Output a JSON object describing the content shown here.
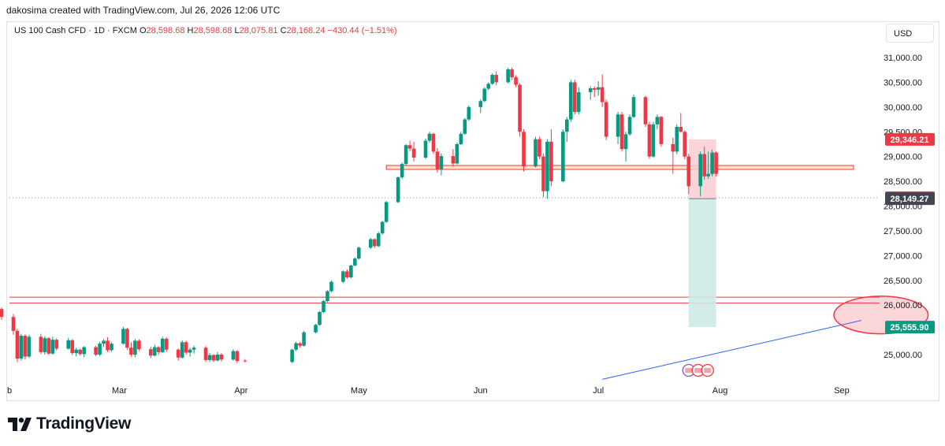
{
  "header": {
    "attribution": "dakosima created with TradingView.com, Jul 26, 2026 12:06 UTC"
  },
  "symbol_bar": {
    "symbol": "US 100 Cash CFD · 1D · FXCM",
    "open_label": "O",
    "open": "28,598.68",
    "high_label": "H",
    "high": "28,598.68",
    "low_label": "L",
    "low": "28,075.81",
    "close_label": "C",
    "close": "28,168.24",
    "change": "−430.44 (−1.51%)"
  },
  "currency": "USD",
  "brand": {
    "name": "TradingView",
    "logo_icon": "tradingview-logo-icon"
  },
  "colors": {
    "up": "#089981",
    "down": "#f23645",
    "zone": "#f7e9c8",
    "stop": "#f9cdd1",
    "target": "#cdeae4",
    "trendline": "#2962ff"
  },
  "chart_data": {
    "type": "candlestick",
    "y_ticks": [
      "31,000.00",
      "30,500.00",
      "30,000.00",
      "29,500.00",
      "29,000.00",
      "28,500.00",
      "28,000.00",
      "27,500.00",
      "27,000.00",
      "26,500.00",
      "26,000.00",
      "25,000.00"
    ],
    "y_tick_values": [
      31000,
      30500,
      30000,
      29500,
      29000,
      28500,
      28000,
      27500,
      27000,
      26500,
      26000,
      25000
    ],
    "x_ticks": [
      "Feb",
      "Mar",
      "Apr",
      "May",
      "Jun",
      "Jul",
      "Aug",
      "Sep"
    ],
    "x_tick_labels": [
      "b",
      "Mar",
      "Apr",
      "May",
      "Jun",
      "Jul",
      "Aug",
      "Sep"
    ],
    "x_tick_dates": [
      "2026-02-01",
      "2026-03-01",
      "2026-04-01",
      "2026-05-01",
      "2026-06-01",
      "2026-07-01",
      "2026-08-01",
      "2026-09-01"
    ],
    "price_labels": [
      {
        "text": "29,346.21",
        "value": 29346.21,
        "color": "#f23645"
      },
      {
        "text": "28,168.24",
        "value": 28168.24,
        "color": "#f23645"
      },
      {
        "text": "28,149.27",
        "value": 28149.27,
        "color": "#434651"
      },
      {
        "text": "25,555.90",
        "value": 25555.9,
        "color": "#089981"
      }
    ],
    "last_price": 28168.24,
    "resistance_zone": {
      "top": 28820,
      "bottom": 28740,
      "from": "2026-05-08",
      "to": "2026-09-01"
    },
    "support_lines": [
      26160,
      26040
    ],
    "position": {
      "from": "2026-07-24",
      "to": "2026-07-31",
      "entry": 28149.27,
      "stop": 29346.21,
      "target": 25555.9
    },
    "trendline": {
      "from": {
        "date": "2026-07-02",
        "value": 24500
      },
      "to": {
        "date": "2026-09-06",
        "value": 25690
      }
    },
    "ellipse": {
      "center_date": "2026-09-11",
      "center_value": 25800,
      "date_radius_days": 12,
      "value_radius": 380
    },
    "events_date": "2026-07-24",
    "candles_a": [
      [
        "2026-01-30",
        25920,
        25950,
        25700,
        25760
      ],
      [
        "2026-02-02",
        25760,
        25820,
        25400,
        25480
      ],
      [
        "2026-02-03",
        25480,
        25520,
        24850,
        24920
      ],
      [
        "2026-02-04",
        24920,
        25420,
        24880,
        25380
      ],
      [
        "2026-02-05",
        25380,
        25410,
        24900,
        24960
      ],
      [
        "2026-02-06",
        24960,
        25400,
        24930,
        25360
      ],
      [
        "2026-02-09",
        25360,
        25420,
        25010,
        25050
      ],
      [
        "2026-02-10",
        25050,
        25370,
        25000,
        25330
      ],
      [
        "2026-02-11",
        25330,
        25350,
        24990,
        25020
      ],
      [
        "2026-02-12",
        25020,
        25360,
        25000,
        25300
      ],
      [
        "2026-02-13",
        25300,
        25330,
        25080,
        25120
      ],
      [
        "2026-02-16",
        25120,
        25340,
        25100,
        25290
      ],
      [
        "2026-02-17",
        25290,
        25310,
        24990,
        25030
      ],
      [
        "2026-02-18",
        25030,
        25140,
        24960,
        25100
      ],
      [
        "2026-02-19",
        25100,
        25120,
        24980,
        25010
      ],
      [
        "2026-02-20",
        25010,
        25170,
        24950,
        25150
      ],
      [
        "2026-02-23",
        25150,
        25180,
        24970,
        25000
      ],
      [
        "2026-02-24",
        25000,
        25260,
        24970,
        25220
      ],
      [
        "2026-02-25",
        25220,
        25310,
        25150,
        25280
      ],
      [
        "2026-02-26",
        25280,
        25350,
        25050,
        25090
      ],
      [
        "2026-02-27",
        25090,
        25250,
        25060,
        25220
      ],
      [
        "2026-03-02",
        25220,
        25560,
        25200,
        25520
      ],
      [
        "2026-03-03",
        25520,
        25540,
        25100,
        25140
      ],
      [
        "2026-03-04",
        25140,
        25250,
        24960,
        25000
      ],
      [
        "2026-03-05",
        25000,
        25320,
        24950,
        25280
      ],
      [
        "2026-03-06",
        25280,
        25310,
        25070,
        25110
      ],
      [
        "2026-03-09",
        25110,
        25160,
        24930,
        24980
      ],
      [
        "2026-03-10",
        24980,
        25200,
        24960,
        25150
      ],
      [
        "2026-03-11",
        25150,
        25170,
        25000,
        25050
      ],
      [
        "2026-03-12",
        25050,
        25360,
        25030,
        25320
      ],
      [
        "2026-03-13",
        25320,
        25350,
        25050,
        25100
      ],
      [
        "2026-03-16",
        25100,
        25120,
        24880,
        24940
      ],
      [
        "2026-03-17",
        24940,
        25290,
        24920,
        25250
      ],
      [
        "2026-03-18",
        25250,
        25280,
        25000,
        25040
      ],
      [
        "2026-03-19",
        25040,
        25140,
        24960,
        25100
      ],
      [
        "2026-03-20",
        25100,
        25180,
        25020,
        25140
      ],
      [
        "2026-03-23",
        25140,
        25170,
        24850,
        24890
      ],
      [
        "2026-03-24",
        24890,
        25030,
        24850,
        24990
      ],
      [
        "2026-03-25",
        24990,
        25010,
        24850,
        24880
      ],
      [
        "2026-03-26",
        24880,
        25050,
        24860,
        25000
      ],
      [
        "2026-03-27",
        25000,
        25030,
        24860,
        24900
      ],
      [
        "2026-03-30",
        24900,
        25110,
        24880,
        25070
      ],
      [
        "2026-03-31",
        25070,
        25090,
        24830,
        24870
      ],
      [
        "2026-04-02",
        24880,
        24910,
        24840,
        24870
      ]
    ],
    "candles_b": [
      [
        "2026-04-14",
        24850,
        25120,
        24830,
        25100
      ],
      [
        "2026-04-15",
        25100,
        25260,
        25070,
        25230
      ],
      [
        "2026-04-16",
        25230,
        25250,
        25140,
        25180
      ],
      [
        "2026-04-17",
        25180,
        25480,
        25160,
        25450
      ],
      [
        "2026-04-20",
        25450,
        25620,
        25430,
        25600
      ],
      [
        "2026-04-21",
        25600,
        25880,
        25580,
        25860
      ],
      [
        "2026-04-22",
        25860,
        26100,
        25840,
        26080
      ],
      [
        "2026-04-23",
        26080,
        26300,
        26060,
        26280
      ],
      [
        "2026-04-24",
        26280,
        26500,
        26260,
        26470
      ],
      [
        "2026-04-27",
        26470,
        26700,
        26450,
        26680
      ],
      [
        "2026-04-28",
        26680,
        26720,
        26530,
        26560
      ],
      [
        "2026-04-29",
        26560,
        26820,
        26540,
        26800
      ],
      [
        "2026-04-30",
        26800,
        26960,
        26780,
        26940
      ],
      [
        "2026-05-01",
        26940,
        27180,
        26920,
        27160
      ],
      [
        "2026-05-04",
        27160,
        27360,
        27130,
        27330
      ],
      [
        "2026-05-05",
        27330,
        27350,
        27150,
        27190
      ],
      [
        "2026-05-06",
        27190,
        27480,
        27170,
        27450
      ],
      [
        "2026-05-07",
        27450,
        27700,
        27420,
        27680
      ],
      [
        "2026-05-08",
        27680,
        28100,
        27660,
        28080
      ],
      [
        "2026-05-11",
        28080,
        28600,
        28060,
        28580
      ],
      [
        "2026-05-12",
        28580,
        28880,
        28550,
        28850
      ],
      [
        "2026-05-13",
        28850,
        29250,
        28830,
        29230
      ],
      [
        "2026-05-14",
        29230,
        29320,
        29110,
        29160
      ],
      [
        "2026-05-15",
        29160,
        29300,
        28900,
        28980
      ],
      [
        "2026-05-18",
        28980,
        29360,
        28950,
        29320
      ],
      [
        "2026-05-19",
        29320,
        29500,
        29280,
        29460
      ],
      [
        "2026-05-20",
        29460,
        29480,
        29050,
        29100
      ],
      [
        "2026-05-21",
        29100,
        29170,
        28680,
        28750
      ],
      [
        "2026-05-22",
        28750,
        29060,
        28620,
        29010
      ],
      [
        "2026-05-25",
        29010,
        29150,
        28800,
        28860
      ],
      [
        "2026-05-26",
        28860,
        29280,
        28840,
        29250
      ],
      [
        "2026-05-27",
        29250,
        29500,
        29230,
        29460
      ],
      [
        "2026-05-28",
        29460,
        29780,
        29440,
        29750
      ],
      [
        "2026-05-29",
        29750,
        30030,
        29720,
        30000
      ],
      [
        "2026-06-01",
        30000,
        30150,
        29880,
        30120
      ],
      [
        "2026-06-02",
        30120,
        30400,
        30100,
        30370
      ],
      [
        "2026-06-03",
        30370,
        30500,
        30340,
        30470
      ],
      [
        "2026-06-04",
        30470,
        30680,
        30450,
        30650
      ],
      [
        "2026-06-05",
        30650,
        30720,
        30440,
        30500
      ],
      [
        "2026-06-08",
        30500,
        30790,
        30480,
        30760
      ],
      [
        "2026-06-09",
        30760,
        30800,
        30550,
        30600
      ],
      [
        "2026-06-10",
        30600,
        30640,
        30400,
        30450
      ],
      [
        "2026-06-11",
        30450,
        30480,
        29400,
        29500
      ],
      [
        "2026-06-12",
        29500,
        29550,
        28700,
        28800
      ],
      [
        "2026-06-15",
        28800,
        29400,
        28780,
        29350
      ],
      [
        "2026-06-16",
        29350,
        29400,
        28950,
        29000
      ],
      [
        "2026-06-17",
        29000,
        29050,
        28180,
        28300
      ],
      [
        "2026-06-18",
        28300,
        29350,
        28150,
        29300
      ],
      [
        "2026-06-19",
        29300,
        29550,
        28400,
        28500
      ],
      [
        "2026-06-22",
        28500,
        29550,
        28480,
        29500
      ],
      [
        "2026-06-23",
        29500,
        29800,
        29300,
        29750
      ],
      [
        "2026-06-24",
        29750,
        30550,
        29700,
        30500
      ],
      [
        "2026-06-25",
        30500,
        30550,
        29850,
        29900
      ],
      [
        "2026-06-26",
        29900,
        30400,
        29850,
        30300
      ],
      [
        "2026-06-29",
        30300,
        30420,
        30150,
        30380
      ],
      [
        "2026-06-30",
        30380,
        30420,
        30200,
        30350
      ],
      [
        "2026-07-01",
        30350,
        30520,
        30230,
        30400
      ],
      [
        "2026-07-02",
        30400,
        30660,
        30000,
        30100
      ],
      [
        "2026-07-03",
        30100,
        30150,
        29330,
        29400
      ],
      [
        "2026-07-06",
        29400,
        29900,
        29250,
        29850
      ],
      [
        "2026-07-07",
        29850,
        29900,
        29100,
        29150
      ],
      [
        "2026-07-08",
        29150,
        29500,
        28900,
        29450
      ],
      [
        "2026-07-09",
        29450,
        29850,
        29420,
        29800
      ],
      [
        "2026-07-10",
        29800,
        30250,
        29780,
        30200
      ],
      [
        "2026-07-13",
        30200,
        30230,
        29600,
        29650
      ],
      [
        "2026-07-14",
        29650,
        29700,
        28960,
        29000
      ],
      [
        "2026-07-15",
        29000,
        29700,
        28980,
        29650
      ],
      [
        "2026-07-16",
        29650,
        29850,
        29550,
        29800
      ],
      [
        "2026-07-17",
        29800,
        29820,
        29200,
        29250
      ],
      [
        "2026-07-20",
        29250,
        29380,
        28650,
        29100
      ],
      [
        "2026-07-21",
        29100,
        29650,
        29050,
        29600
      ],
      [
        "2026-07-22",
        29600,
        29880,
        29480,
        29500
      ],
      [
        "2026-07-23",
        29500,
        29530,
        28950,
        29000
      ],
      [
        "2026-07-24",
        29000,
        29050,
        28240,
        28400
      ],
      [
        "2026-07-27",
        28400,
        29100,
        28200,
        29050
      ],
      [
        "2026-07-28",
        29050,
        29200,
        28530,
        28600
      ],
      [
        "2026-07-29",
        28600,
        29100,
        28550,
        28650
      ],
      [
        "2026-07-30",
        28650,
        29140,
        28600,
        29080
      ],
      [
        "2026-07-31",
        29080,
        29100,
        28600,
        28650
      ]
    ]
  }
}
